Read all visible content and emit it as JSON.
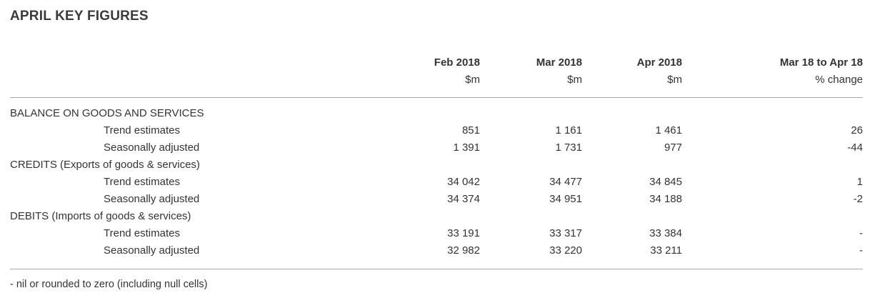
{
  "title": "APRIL KEY FIGURES",
  "table": {
    "columns": [
      "Feb 2018",
      "Mar 2018",
      "Apr 2018",
      "Mar 18 to Apr 18"
    ],
    "units": [
      "$m",
      "$m",
      "$m",
      "% change"
    ],
    "rows": [
      {
        "type": "section",
        "label": "BALANCE ON GOODS AND SERVICES"
      },
      {
        "type": "data",
        "label": "Trend estimates",
        "values": [
          "851",
          "1 161",
          "1 461",
          "26"
        ]
      },
      {
        "type": "data",
        "label": "Seasonally adjusted",
        "values": [
          "1 391",
          "1 731",
          "977",
          "-44"
        ]
      },
      {
        "type": "section",
        "label": "CREDITS (Exports of goods & services)"
      },
      {
        "type": "data",
        "label": "Trend estimates",
        "values": [
          "34 042",
          "34 477",
          "34 845",
          "1"
        ]
      },
      {
        "type": "data",
        "label": "Seasonally adjusted",
        "values": [
          "34 374",
          "34 951",
          "34 188",
          "-2"
        ]
      },
      {
        "type": "section",
        "label": "DEBITS (Imports of goods & services)"
      },
      {
        "type": "data",
        "label": "Trend estimates",
        "values": [
          "33 191",
          "33 317",
          "33 384",
          "-"
        ]
      },
      {
        "type": "data",
        "label": "Seasonally adjusted",
        "values": [
          "32 982",
          "33 220",
          "33 211",
          "-"
        ]
      }
    ]
  },
  "footnote": "- nil or rounded to zero (including null cells)"
}
